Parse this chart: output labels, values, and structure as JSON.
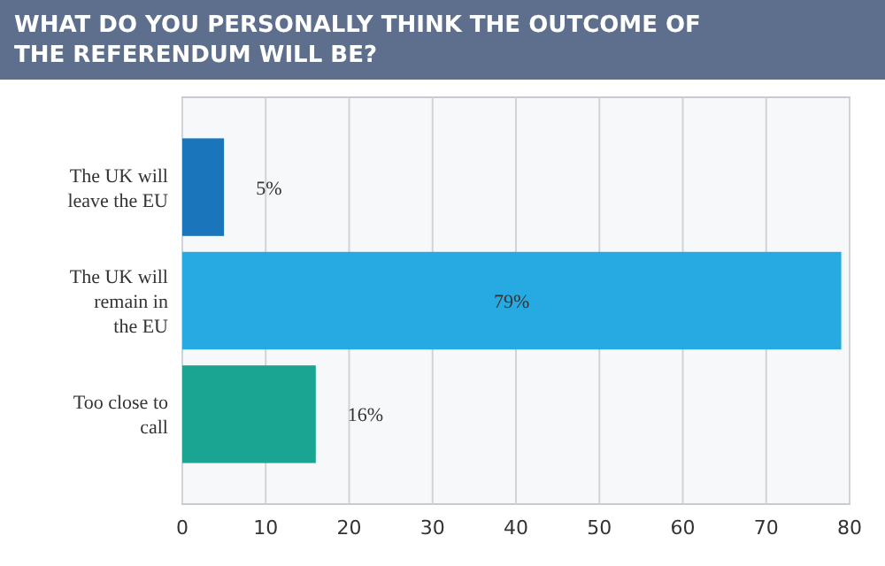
{
  "chart_data": {
    "type": "bar",
    "orientation": "horizontal",
    "title": "WHAT DO YOU PERSONALLY THINK THE OUTCOME OF THE REFERENDUM WILL BE?",
    "categories": [
      "The UK will leave the EU",
      "The UK will remain in the EU",
      "Too close to call"
    ],
    "values": [
      5,
      79,
      16
    ],
    "colors": [
      "#1b75bb",
      "#27aae1",
      "#1aa592"
    ],
    "value_labels": [
      "5%",
      "79%",
      "16%"
    ],
    "xlim": [
      0,
      80
    ],
    "xticks": [
      0,
      10,
      20,
      30,
      40,
      50,
      60,
      70,
      80
    ],
    "grid": "x"
  }
}
